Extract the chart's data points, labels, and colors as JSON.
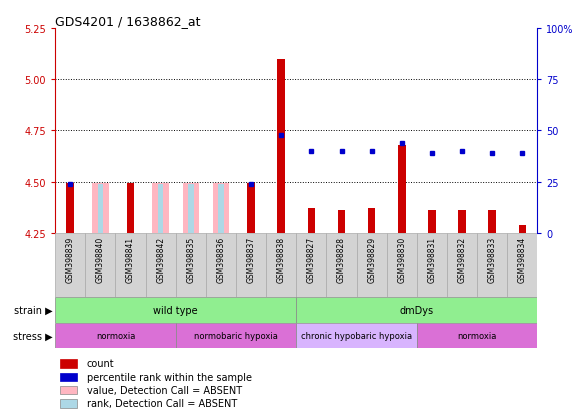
{
  "title": "GDS4201 / 1638862_at",
  "samples": [
    "GSM398839",
    "GSM398840",
    "GSM398841",
    "GSM398842",
    "GSM398835",
    "GSM398836",
    "GSM398837",
    "GSM398838",
    "GSM398827",
    "GSM398828",
    "GSM398829",
    "GSM398830",
    "GSM398831",
    "GSM398832",
    "GSM398833",
    "GSM398834"
  ],
  "red_values": [
    4.495,
    4.25,
    4.495,
    4.25,
    4.25,
    4.25,
    4.495,
    5.1,
    4.37,
    4.36,
    4.37,
    4.68,
    4.36,
    4.36,
    4.36,
    4.29
  ],
  "pink_values": [
    null,
    4.495,
    null,
    4.495,
    4.495,
    4.495,
    null,
    null,
    null,
    null,
    null,
    null,
    null,
    null,
    null,
    null
  ],
  "blue_pct": [
    24,
    null,
    null,
    null,
    null,
    null,
    24,
    48,
    40,
    40,
    40,
    44,
    39,
    40,
    39,
    39
  ],
  "light_blue_pct": [
    null,
    24,
    null,
    24,
    24,
    24,
    null,
    null,
    null,
    null,
    null,
    null,
    null,
    null,
    null,
    null
  ],
  "ylim": [
    4.25,
    5.25
  ],
  "yticks": [
    4.25,
    4.5,
    4.75,
    5.0,
    5.25
  ],
  "right_ylim": [
    0,
    100
  ],
  "right_yticks": [
    0,
    25,
    50,
    75,
    100
  ],
  "background_color": "#ffffff",
  "left_axis_color": "#CC0000",
  "right_axis_color": "#0000CC",
  "strain_groups": [
    {
      "label": "wild type",
      "start": 0,
      "end": 8,
      "color": "#90EE90"
    },
    {
      "label": "dmDys",
      "start": 8,
      "end": 16,
      "color": "#90EE90"
    }
  ],
  "stress_groups": [
    {
      "label": "normoxia",
      "start": 0,
      "end": 4,
      "color": "#DA70D6"
    },
    {
      "label": "normobaric hypoxia",
      "start": 4,
      "end": 8,
      "color": "#DA70D6"
    },
    {
      "label": "chronic hypobaric hypoxia",
      "start": 8,
      "end": 12,
      "color": "#D8B4FE"
    },
    {
      "label": "normoxia",
      "start": 12,
      "end": 16,
      "color": "#DA70D6"
    }
  ]
}
